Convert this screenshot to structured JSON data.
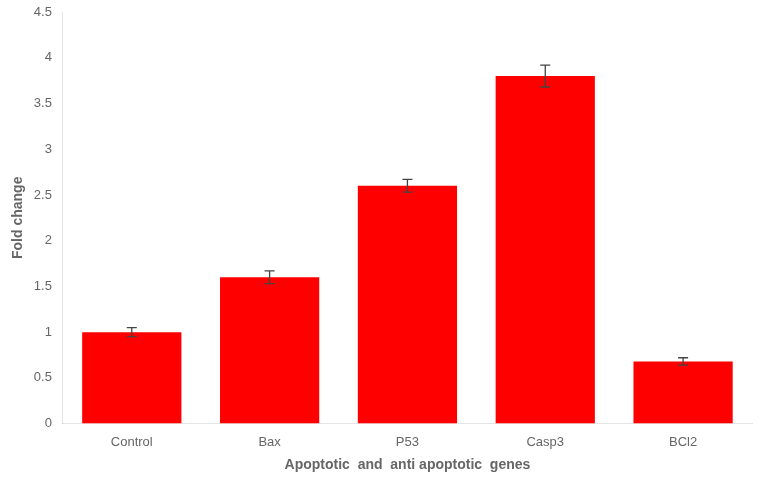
{
  "chart_data": {
    "type": "bar",
    "categories": [
      "Control",
      "Bax",
      "P53",
      "Casp3",
      "BCl2"
    ],
    "values": [
      1.0,
      1.6,
      2.6,
      3.8,
      0.68
    ],
    "errors": [
      0.05,
      0.07,
      0.07,
      0.12,
      0.04
    ],
    "color": "#ff0000",
    "xlabel": "Apoptotic  and  anti apoptotic  genes",
    "ylabel": "Fold change",
    "ylim": [
      0,
      4.5
    ],
    "yticks": [
      0,
      0.5,
      1,
      1.5,
      2,
      2.5,
      3,
      3.5,
      4,
      4.5
    ],
    "grid": false
  }
}
